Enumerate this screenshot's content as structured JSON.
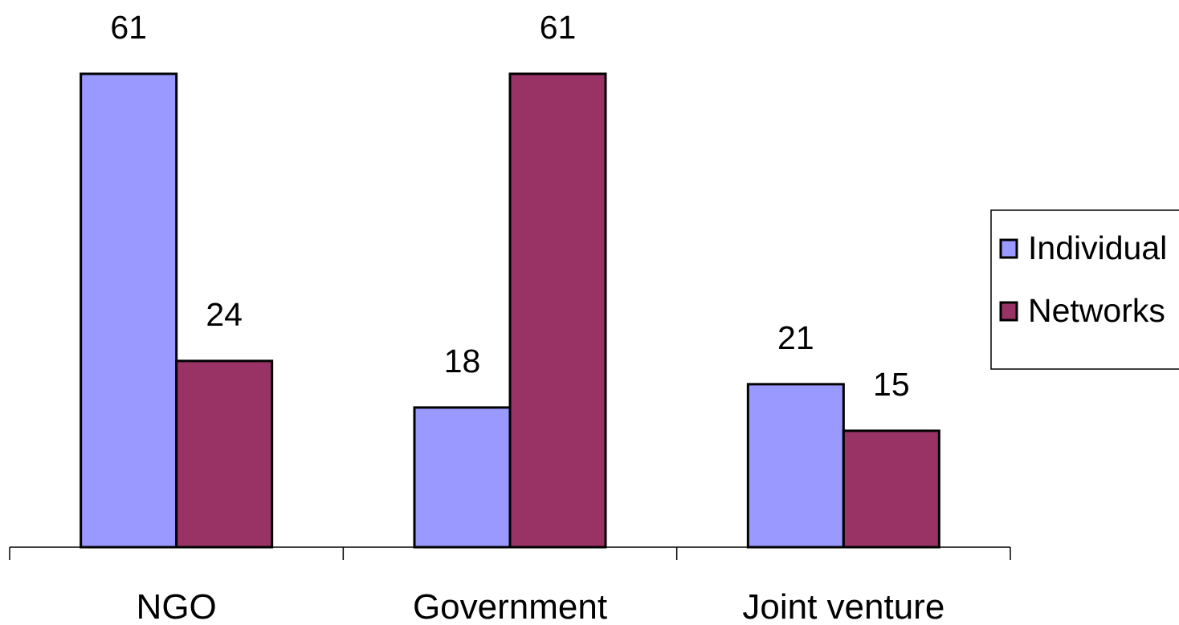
{
  "chart_data": {
    "type": "bar",
    "categories": [
      "NGO",
      "Government",
      "Joint venture"
    ],
    "series": [
      {
        "name": "Individual",
        "values": [
          61,
          18,
          21
        ],
        "color": "#9999ff"
      },
      {
        "name": "Networks",
        "values": [
          24,
          61,
          15
        ],
        "color": "#993366"
      }
    ],
    "ylim": [
      0,
      61
    ],
    "grid": false,
    "data_labels": true,
    "legend_position": "right"
  }
}
